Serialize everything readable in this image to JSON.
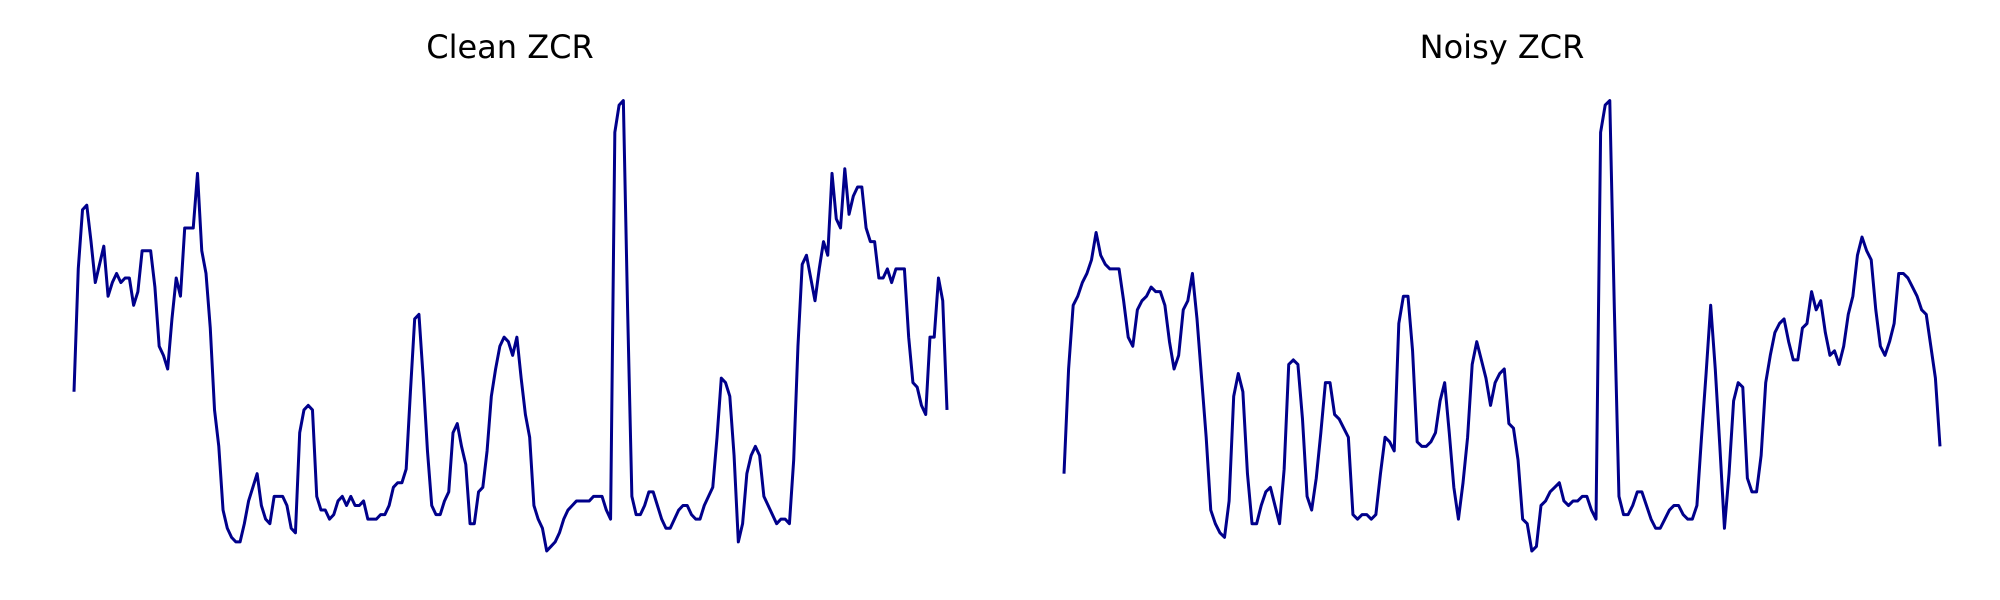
{
  "chart_data": [
    {
      "type": "line",
      "title": "Clean ZCR",
      "xlabel": "",
      "ylabel": "",
      "axes_visible": false,
      "grid": false,
      "line_color": "#00008B",
      "x_range": [
        0,
        199
      ],
      "ylim": [
        0,
        1
      ],
      "series": [
        {
          "values": [
            0.35,
            0.62,
            0.75,
            0.76,
            0.68,
            0.59,
            0.63,
            0.67,
            0.56,
            0.59,
            0.61,
            0.59,
            0.6,
            0.6,
            0.54,
            0.57,
            0.66,
            0.66,
            0.66,
            0.58,
            0.45,
            0.43,
            0.4,
            0.51,
            0.6,
            0.56,
            0.71,
            0.71,
            0.71,
            0.83,
            0.66,
            0.61,
            0.49,
            0.31,
            0.23,
            0.09,
            0.05,
            0.03,
            0.02,
            0.02,
            0.06,
            0.11,
            0.14,
            0.17,
            0.1,
            0.07,
            0.06,
            0.12,
            0.12,
            0.12,
            0.1,
            0.05,
            0.04,
            0.26,
            0.31,
            0.32,
            0.31,
            0.12,
            0.09,
            0.09,
            0.07,
            0.08,
            0.11,
            0.12,
            0.1,
            0.12,
            0.1,
            0.1,
            0.11,
            0.07,
            0.07,
            0.07,
            0.08,
            0.08,
            0.1,
            0.14,
            0.15,
            0.15,
            0.18,
            0.35,
            0.51,
            0.52,
            0.38,
            0.22,
            0.1,
            0.08,
            0.08,
            0.11,
            0.13,
            0.26,
            0.28,
            0.23,
            0.19,
            0.06,
            0.06,
            0.13,
            0.14,
            0.22,
            0.34,
            0.4,
            0.45,
            0.47,
            0.46,
            0.43,
            0.47,
            0.38,
            0.3,
            0.25,
            0.1,
            0.07,
            0.05,
            0.0,
            0.01,
            0.02,
            0.04,
            0.07,
            0.09,
            0.1,
            0.11,
            0.11,
            0.11,
            0.11,
            0.12,
            0.12,
            0.12,
            0.09,
            0.07,
            0.92,
            0.98,
            0.99,
            0.53,
            0.12,
            0.08,
            0.08,
            0.1,
            0.13,
            0.13,
            0.1,
            0.07,
            0.05,
            0.05,
            0.07,
            0.09,
            0.1,
            0.1,
            0.08,
            0.07,
            0.07,
            0.1,
            0.12,
            0.14,
            0.25,
            0.38,
            0.37,
            0.34,
            0.21,
            0.02,
            0.06,
            0.17,
            0.21,
            0.23,
            0.21,
            0.12,
            0.1,
            0.08,
            0.06,
            0.07,
            0.07,
            0.06,
            0.2,
            0.45,
            0.63,
            0.65,
            0.6,
            0.55,
            0.62,
            0.68,
            0.65,
            0.83,
            0.73,
            0.71,
            0.84,
            0.74,
            0.78,
            0.8,
            0.8,
            0.71,
            0.68,
            0.68,
            0.6,
            0.6,
            0.62,
            0.59,
            0.62,
            0.62,
            0.62,
            0.47,
            0.37,
            0.36,
            0.32,
            0.3,
            0.47,
            0.47,
            0.6,
            0.55,
            0.31
          ]
        }
      ]
    },
    {
      "type": "line",
      "title": "Noisy ZCR",
      "xlabel": "",
      "ylabel": "",
      "axes_visible": false,
      "grid": false,
      "line_color": "#00008B",
      "x_range": [
        0,
        199
      ],
      "ylim": [
        0,
        1
      ],
      "series": [
        {
          "values": [
            0.17,
            0.4,
            0.54,
            0.56,
            0.59,
            0.61,
            0.64,
            0.7,
            0.65,
            0.63,
            0.62,
            0.62,
            0.62,
            0.55,
            0.47,
            0.45,
            0.53,
            0.55,
            0.56,
            0.58,
            0.57,
            0.57,
            0.54,
            0.46,
            0.4,
            0.43,
            0.53,
            0.55,
            0.61,
            0.51,
            0.38,
            0.25,
            0.09,
            0.06,
            0.04,
            0.03,
            0.11,
            0.34,
            0.39,
            0.35,
            0.17,
            0.06,
            0.06,
            0.1,
            0.13,
            0.14,
            0.1,
            0.06,
            0.18,
            0.41,
            0.42,
            0.41,
            0.29,
            0.12,
            0.09,
            0.16,
            0.26,
            0.37,
            0.37,
            0.3,
            0.29,
            0.27,
            0.25,
            0.08,
            0.07,
            0.08,
            0.08,
            0.07,
            0.08,
            0.17,
            0.25,
            0.24,
            0.22,
            0.5,
            0.56,
            0.56,
            0.44,
            0.24,
            0.23,
            0.23,
            0.24,
            0.26,
            0.33,
            0.37,
            0.26,
            0.14,
            0.07,
            0.15,
            0.25,
            0.41,
            0.46,
            0.42,
            0.38,
            0.32,
            0.37,
            0.39,
            0.4,
            0.28,
            0.27,
            0.2,
            0.07,
            0.06,
            0.0,
            0.01,
            0.1,
            0.11,
            0.13,
            0.14,
            0.15,
            0.11,
            0.1,
            0.11,
            0.11,
            0.12,
            0.12,
            0.09,
            0.07,
            0.92,
            0.98,
            0.99,
            0.53,
            0.12,
            0.08,
            0.08,
            0.1,
            0.13,
            0.13,
            0.1,
            0.07,
            0.05,
            0.05,
            0.07,
            0.09,
            0.1,
            0.1,
            0.08,
            0.07,
            0.07,
            0.1,
            0.25,
            0.39,
            0.54,
            0.4,
            0.23,
            0.05,
            0.17,
            0.33,
            0.37,
            0.36,
            0.16,
            0.13,
            0.13,
            0.21,
            0.37,
            0.43,
            0.48,
            0.5,
            0.51,
            0.46,
            0.42,
            0.42,
            0.49,
            0.5,
            0.57,
            0.53,
            0.55,
            0.48,
            0.43,
            0.44,
            0.41,
            0.45,
            0.52,
            0.56,
            0.65,
            0.69,
            0.66,
            0.64,
            0.53,
            0.45,
            0.43,
            0.46,
            0.5,
            0.61,
            0.61,
            0.6,
            0.58,
            0.56,
            0.53,
            0.52,
            0.45,
            0.38,
            0.23
          ]
        }
      ]
    }
  ]
}
